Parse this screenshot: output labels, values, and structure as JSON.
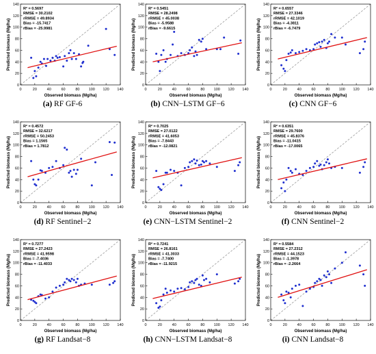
{
  "colors": {
    "points": "#1f2fcf",
    "fit_line": "#e01010",
    "identity_line": "#9a9a9a",
    "axes": "#000000"
  },
  "chart_data": [
    {
      "type": "scatter",
      "panel": "(a)",
      "caption_label": "RF GF-6",
      "xlabel": "Observed biomass (Mg/ha)",
      "ylabel": "Predicted biomass (Mg/ha)",
      "xlim": [
        0,
        140
      ],
      "ylim": [
        0,
        140
      ],
      "ticks": [
        0,
        20,
        40,
        60,
        80,
        100,
        120,
        140
      ],
      "stats": [
        "R² = 0.5697",
        "RMSE = 30.2102",
        "rRMSE = 49.8934",
        "Bias = -15.7417",
        "rBias = -25.9981"
      ],
      "fit": [
        [
          10,
          30
        ],
        [
          135,
          67
        ]
      ],
      "points": [
        [
          15,
          47
        ],
        [
          18,
          12
        ],
        [
          20,
          24
        ],
        [
          22,
          15
        ],
        [
          25,
          30
        ],
        [
          28,
          40
        ],
        [
          30,
          37
        ],
        [
          33,
          45
        ],
        [
          36,
          33
        ],
        [
          38,
          45
        ],
        [
          42,
          42
        ],
        [
          45,
          47
        ],
        [
          48,
          42
        ],
        [
          50,
          50
        ],
        [
          52,
          47
        ],
        [
          55,
          48
        ],
        [
          60,
          32
        ],
        [
          62,
          50
        ],
        [
          65,
          42
        ],
        [
          68,
          55
        ],
        [
          70,
          60
        ],
        [
          72,
          45
        ],
        [
          75,
          55
        ],
        [
          78,
          45
        ],
        [
          82,
          53
        ],
        [
          85,
          32
        ],
        [
          87,
          38
        ],
        [
          88,
          40
        ],
        [
          95,
          68
        ],
        [
          120,
          97
        ],
        [
          125,
          62
        ],
        [
          132,
          52
        ]
      ]
    },
    {
      "type": "scatter",
      "panel": "(b)",
      "caption_label": "CNN−LSTM GF−6",
      "xlabel": "Observed biomass (Mg/ha)",
      "ylabel": "Predicted biomass (Mg/ha)",
      "xlim": [
        0,
        140
      ],
      "ylim": [
        0,
        140
      ],
      "ticks": [
        0,
        20,
        40,
        60,
        80,
        100,
        120,
        140
      ],
      "stats": [
        "R² = 0.5451",
        "RMSE = 28.2498",
        "rRMSE = 45.0038",
        "Bias = -5.9588",
        "rBias = -9.6615"
      ],
      "fit": [
        [
          10,
          40
        ],
        [
          135,
          73
        ]
      ],
      "points": [
        [
          15,
          54
        ],
        [
          18,
          40
        ],
        [
          20,
          24
        ],
        [
          22,
          52
        ],
        [
          25,
          60
        ],
        [
          28,
          40
        ],
        [
          30,
          45
        ],
        [
          35,
          52
        ],
        [
          38,
          70
        ],
        [
          40,
          92
        ],
        [
          45,
          50
        ],
        [
          50,
          55
        ],
        [
          55,
          52
        ],
        [
          60,
          55
        ],
        [
          62,
          60
        ],
        [
          65,
          65
        ],
        [
          68,
          50
        ],
        [
          70,
          58
        ],
        [
          72,
          52
        ],
        [
          75,
          78
        ],
        [
          78,
          75
        ],
        [
          80,
          80
        ],
        [
          85,
          62
        ],
        [
          100,
          62
        ],
        [
          105,
          62
        ],
        [
          110,
          82
        ],
        [
          130,
          54
        ],
        [
          133,
          77
        ]
      ]
    },
    {
      "type": "scatter",
      "panel": "(c)",
      "caption_label": "CNN GF−6",
      "xlabel": "Observed biomass (Mg/ha)",
      "ylabel": "Predicted biomass (Mg/ha)",
      "xlim": [
        0,
        140
      ],
      "ylim": [
        0,
        140
      ],
      "ticks": [
        0,
        20,
        40,
        60,
        80,
        100,
        120,
        140
      ],
      "stats": [
        "R² = 0.6557",
        "RMSE = 27.3346",
        "rRMSE = 42.1019",
        "Bias = -4.3811",
        "rBias = -6.7479"
      ],
      "fit": [
        [
          10,
          45
        ],
        [
          135,
          82
        ]
      ],
      "points": [
        [
          15,
          34
        ],
        [
          18,
          28
        ],
        [
          20,
          24
        ],
        [
          22,
          43
        ],
        [
          25,
          54
        ],
        [
          28,
          56
        ],
        [
          30,
          60
        ],
        [
          35,
          55
        ],
        [
          40,
          57
        ],
        [
          45,
          59
        ],
        [
          50,
          62
        ],
        [
          55,
          60
        ],
        [
          60,
          62
        ],
        [
          62,
          70
        ],
        [
          65,
          72
        ],
        [
          68,
          74
        ],
        [
          70,
          66
        ],
        [
          72,
          75
        ],
        [
          75,
          78
        ],
        [
          78,
          64
        ],
        [
          80,
          72
        ],
        [
          82,
          75
        ],
        [
          85,
          88
        ],
        [
          90,
          82
        ],
        [
          100,
          82
        ],
        [
          105,
          70
        ],
        [
          125,
          55
        ],
        [
          130,
          62
        ],
        [
          132,
          75
        ]
      ]
    },
    {
      "type": "scatter",
      "panel": "(d)",
      "caption_label": "RF Sentinel−2",
      "xlabel": "Observed biomass (Mg/ha)",
      "ylabel": "Predicted biomass (Mg/ha)",
      "xlim": [
        0,
        140
      ],
      "ylim": [
        0,
        140
      ],
      "ticks": [
        0,
        20,
        40,
        60,
        80,
        100,
        120,
        140
      ],
      "stats": [
        "R² = 0.4572",
        "RMSE = 32.6217",
        "rRMSE = 50.2453",
        "Bias = 1.1565",
        "rBias = 1.7812"
      ],
      "fit": [
        [
          10,
          45
        ],
        [
          135,
          88
        ]
      ],
      "points": [
        [
          15,
          72
        ],
        [
          18,
          40
        ],
        [
          20,
          32
        ],
        [
          22,
          30
        ],
        [
          25,
          40
        ],
        [
          28,
          56
        ],
        [
          30,
          55
        ],
        [
          35,
          52
        ],
        [
          40,
          60
        ],
        [
          45,
          62
        ],
        [
          50,
          72
        ],
        [
          55,
          60
        ],
        [
          60,
          65
        ],
        [
          62,
          95
        ],
        [
          65,
          92
        ],
        [
          68,
          52
        ],
        [
          70,
          55
        ],
        [
          72,
          45
        ],
        [
          75,
          57
        ],
        [
          78,
          50
        ],
        [
          80,
          57
        ],
        [
          85,
          76
        ],
        [
          100,
          30
        ],
        [
          105,
          70
        ],
        [
          125,
          105
        ],
        [
          128,
          48
        ],
        [
          132,
          104
        ]
      ]
    },
    {
      "type": "scatter",
      "panel": "(e)",
      "caption_label": "CNN−LSTM Sentinel−2",
      "xlabel": "Observed biomass (Mg/ha)",
      "ylabel": "Predicted biomass (Mg/ha)",
      "xlim": [
        0,
        140
      ],
      "ylim": [
        0,
        140
      ],
      "ticks": [
        0,
        20,
        40,
        60,
        80,
        100,
        120,
        140
      ],
      "stats": [
        "R² = 0.7025",
        "RMSE = 27.0122",
        "rRMSE = 41.6053",
        "Bias = -7.8443",
        "rBias = -12.0821"
      ],
      "fit": [
        [
          10,
          43
        ],
        [
          135,
          78
        ]
      ],
      "points": [
        [
          15,
          55
        ],
        [
          18,
          27
        ],
        [
          20,
          24
        ],
        [
          22,
          22
        ],
        [
          25,
          32
        ],
        [
          28,
          52
        ],
        [
          30,
          52
        ],
        [
          35,
          57
        ],
        [
          40,
          55
        ],
        [
          45,
          52
        ],
        [
          50,
          30
        ],
        [
          55,
          60
        ],
        [
          60,
          62
        ],
        [
          62,
          70
        ],
        [
          65,
          72
        ],
        [
          68,
          75
        ],
        [
          70,
          68
        ],
        [
          72,
          73
        ],
        [
          75,
          65
        ],
        [
          78,
          66
        ],
        [
          80,
          72
        ],
        [
          82,
          70
        ],
        [
          85,
          72
        ],
        [
          90,
          68
        ],
        [
          100,
          62
        ],
        [
          125,
          55
        ],
        [
          130,
          65
        ],
        [
          132,
          70
        ]
      ]
    },
    {
      "type": "scatter",
      "panel": "(f)",
      "caption_label": "CNN Sentinel−2",
      "xlabel": "Observed biomass (Mg/ha)",
      "ylabel": "Predicted biomass (Mg/ha)",
      "xlim": [
        0,
        140
      ],
      "ylim": [
        0,
        140
      ],
      "ticks": [
        0,
        20,
        40,
        60,
        80,
        100,
        120,
        140
      ],
      "stats": [
        "R² = 0.6351",
        "RMSE = 29.7600",
        "rRMSE = 45.8376",
        "Bias = -11.0415",
        "rBias = -17.0065"
      ],
      "fit": [
        [
          10,
          40
        ],
        [
          135,
          76
        ]
      ],
      "points": [
        [
          15,
          25
        ],
        [
          18,
          35
        ],
        [
          20,
          20
        ],
        [
          22,
          40
        ],
        [
          25,
          60
        ],
        [
          28,
          55
        ],
        [
          30,
          52
        ],
        [
          35,
          58
        ],
        [
          40,
          50
        ],
        [
          45,
          48
        ],
        [
          50,
          55
        ],
        [
          55,
          60
        ],
        [
          60,
          62
        ],
        [
          62,
          68
        ],
        [
          65,
          72
        ],
        [
          68,
          64
        ],
        [
          70,
          66
        ],
        [
          72,
          58
        ],
        [
          75,
          65
        ],
        [
          78,
          70
        ],
        [
          80,
          75
        ],
        [
          82,
          68
        ],
        [
          85,
          60
        ],
        [
          90,
          62
        ],
        [
          100,
          60
        ],
        [
          125,
          52
        ],
        [
          130,
          62
        ],
        [
          132,
          70
        ]
      ]
    },
    {
      "type": "scatter",
      "panel": "(g)",
      "caption_label": "RF Landsat−8",
      "xlabel": "Observed biomass (Mg/ha)",
      "ylabel": "Predicted biomass (Mg/ha)",
      "xlim": [
        0,
        140
      ],
      "ylim": [
        0,
        140
      ],
      "ticks": [
        0,
        20,
        40,
        60,
        80,
        100,
        120,
        140
      ],
      "stats": [
        "R² = 0.7277",
        "RMSE = 27.2423",
        "rRMSE = 41.9598",
        "Bias = -7.4036",
        "rBias = -11.4033"
      ],
      "fit": [
        [
          10,
          36
        ],
        [
          135,
          77
        ]
      ],
      "points": [
        [
          15,
          36
        ],
        [
          18,
          34
        ],
        [
          20,
          32
        ],
        [
          22,
          30
        ],
        [
          25,
          42
        ],
        [
          28,
          45
        ],
        [
          30,
          44
        ],
        [
          35,
          38
        ],
        [
          40,
          40
        ],
        [
          45,
          50
        ],
        [
          50,
          57
        ],
        [
          55,
          60
        ],
        [
          60,
          62
        ],
        [
          62,
          66
        ],
        [
          65,
          72
        ],
        [
          68,
          70
        ],
        [
          70,
          68
        ],
        [
          72,
          72
        ],
        [
          75,
          70
        ],
        [
          78,
          66
        ],
        [
          80,
          72
        ],
        [
          82,
          60
        ],
        [
          85,
          62
        ],
        [
          90,
          64
        ],
        [
          100,
          62
        ],
        [
          125,
          62
        ],
        [
          130,
          65
        ],
        [
          132,
          68
        ]
      ]
    },
    {
      "type": "scatter",
      "panel": "(h)",
      "caption_label": "CNN−LSTM Landsat−8",
      "xlabel": "Observed biomass (Mg/ha)",
      "ylabel": "Predicted biomass (Mg/ha)",
      "xlim": [
        0,
        140
      ],
      "ylim": [
        0,
        140
      ],
      "ticks": [
        0,
        20,
        40,
        60,
        80,
        100,
        120,
        140
      ],
      "stats": [
        "R² = 0.7241",
        "RMSE = 26.8161",
        "rRMSE = 41.3033",
        "Bias = -7.7400",
        "rBias = -11.9215"
      ],
      "fit": [
        [
          10,
          38
        ],
        [
          135,
          75
        ]
      ],
      "points": [
        [
          15,
          30
        ],
        [
          18,
          22
        ],
        [
          20,
          24
        ],
        [
          22,
          35
        ],
        [
          25,
          45
        ],
        [
          28,
          55
        ],
        [
          30,
          48
        ],
        [
          35,
          52
        ],
        [
          40,
          50
        ],
        [
          45,
          55
        ],
        [
          50,
          56
        ],
        [
          55,
          54
        ],
        [
          60,
          58
        ],
        [
          62,
          66
        ],
        [
          65,
          68
        ],
        [
          68,
          65
        ],
        [
          70,
          70
        ],
        [
          72,
          72
        ],
        [
          75,
          62
        ],
        [
          78,
          60
        ],
        [
          80,
          78
        ],
        [
          82,
          70
        ],
        [
          85,
          72
        ],
        [
          90,
          66
        ],
        [
          100,
          80
        ],
        [
          125,
          64
        ],
        [
          130,
          68
        ],
        [
          132,
          72
        ]
      ]
    },
    {
      "type": "scatter",
      "panel": "(i)",
      "caption_label": "CNN Landsat−8",
      "xlabel": "Observed biomass (Mg/ha)",
      "ylabel": "Predicted biomass (Mg/ha)",
      "xlim": [
        0,
        140
      ],
      "ylim": [
        0,
        140
      ],
      "ticks": [
        0,
        20,
        40,
        60,
        80,
        100,
        120,
        140
      ],
      "stats": [
        "R² = 0.5584",
        "RMSE = 27.2312",
        "rRMSE = 44.1523",
        "Bias = -1.3978",
        "rBias = -2.2664"
      ],
      "fit": [
        [
          10,
          40
        ],
        [
          135,
          88
        ]
      ],
      "points": [
        [
          15,
          45
        ],
        [
          18,
          35
        ],
        [
          20,
          30
        ],
        [
          22,
          50
        ],
        [
          25,
          48
        ],
        [
          28,
          40
        ],
        [
          30,
          55
        ],
        [
          35,
          60
        ],
        [
          40,
          62
        ],
        [
          45,
          25
        ],
        [
          50,
          50
        ],
        [
          55,
          55
        ],
        [
          60,
          58
        ],
        [
          62,
          65
        ],
        [
          65,
          68
        ],
        [
          68,
          72
        ],
        [
          70,
          70
        ],
        [
          72,
          60
        ],
        [
          75,
          78
        ],
        [
          78,
          75
        ],
        [
          80,
          85
        ],
        [
          82,
          80
        ],
        [
          85,
          65
        ],
        [
          90,
          90
        ],
        [
          100,
          100
        ],
        [
          105,
          118
        ],
        [
          125,
          95
        ],
        [
          130,
          80
        ],
        [
          132,
          60
        ]
      ]
    }
  ]
}
